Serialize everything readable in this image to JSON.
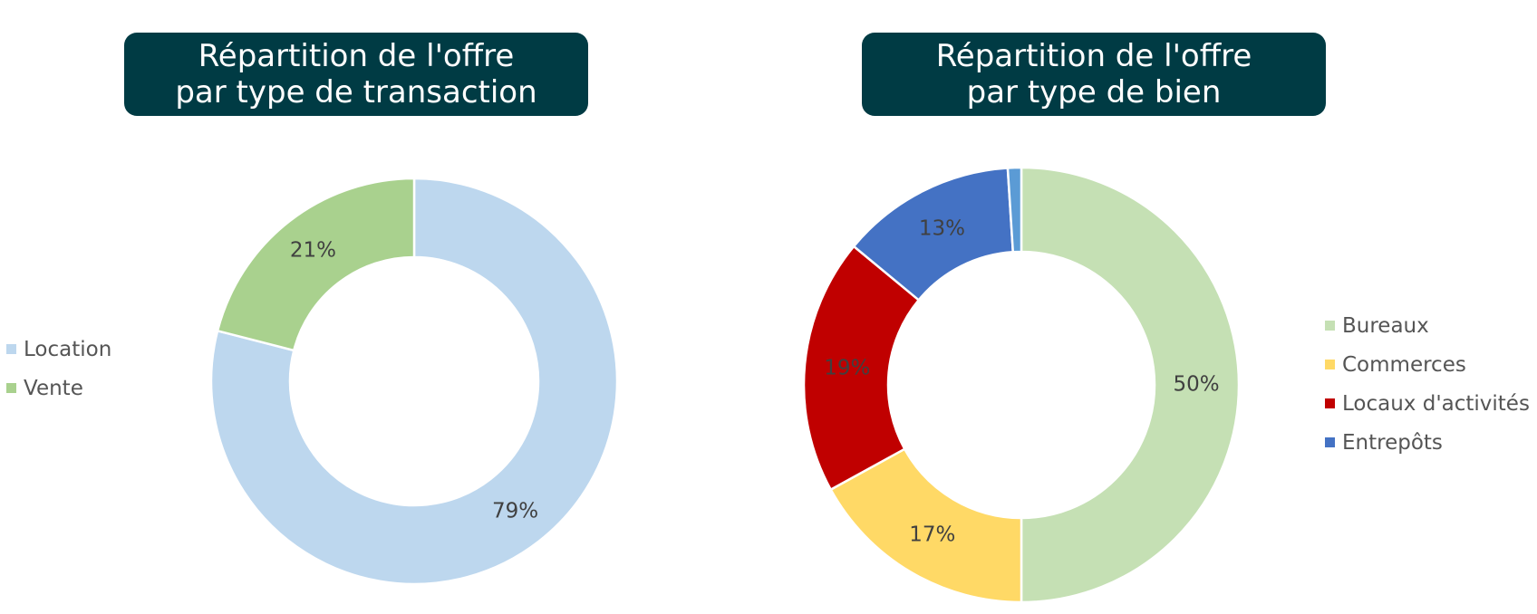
{
  "charts": [
    {
      "title_line1": "Répartition de l'offre",
      "title_line2": "par type de transaction"
    },
    {
      "title_line1": "Répartition de l'offre",
      "title_line2": "par type de bien"
    }
  ],
  "chart_data": [
    {
      "type": "pie",
      "variant": "donut",
      "title": "Répartition de l'offre par type de transaction",
      "legend_position": "left",
      "series": [
        {
          "name": "Location",
          "value": 79,
          "label": "79%",
          "color": "#bdd7ee"
        },
        {
          "name": "Vente",
          "value": 21,
          "label": "21%",
          "color": "#a9d18e"
        }
      ]
    },
    {
      "type": "pie",
      "variant": "donut",
      "title": "Répartition de l'offre par type de bien",
      "legend_position": "right",
      "series": [
        {
          "name": "Bureaux",
          "value": 50,
          "label": "50%",
          "color": "#c5e0b4"
        },
        {
          "name": "Commerces",
          "value": 17,
          "label": "17%",
          "color": "#ffd966"
        },
        {
          "name": "Locaux d'activités",
          "value": 19,
          "label": "19%",
          "color": "#c00000"
        },
        {
          "name": "Entrepôts",
          "value": 13,
          "label": "13%",
          "color": "#4472c4"
        },
        {
          "name": "",
          "value": 1,
          "label": "",
          "color": "#5b9bd5"
        }
      ]
    }
  ]
}
